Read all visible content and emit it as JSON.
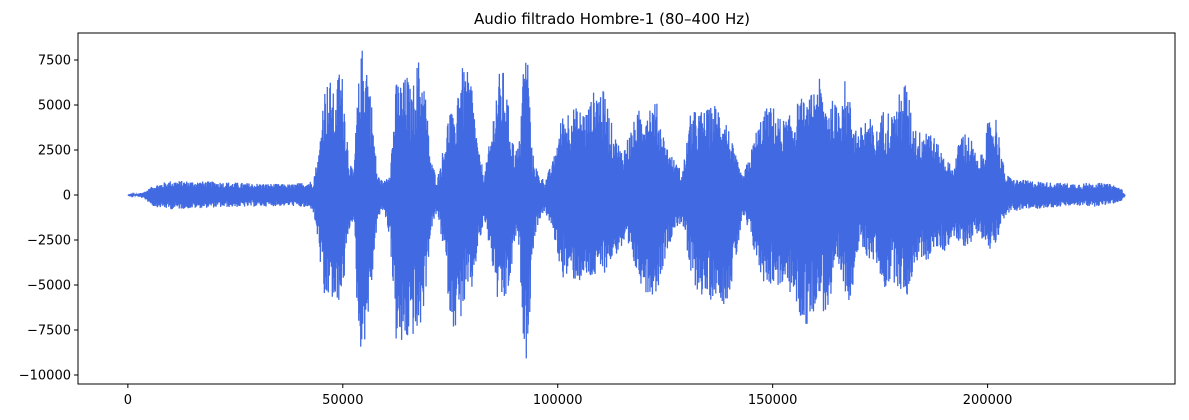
{
  "chart_data": {
    "type": "line",
    "title": "Audio filtrado Hombre-1 (80–400 Hz)",
    "xlabel": "",
    "ylabel": "",
    "xlim": [
      -11600,
      243600
    ],
    "ylim": [
      -10500,
      9000
    ],
    "xticks": [
      0,
      50000,
      100000,
      150000,
      200000
    ],
    "xtick_labels": [
      "0",
      "50000",
      "100000",
      "150000",
      "200000"
    ],
    "yticks": [
      -10000,
      -7500,
      -5000,
      -2500,
      0,
      2500,
      5000,
      7500
    ],
    "ytick_labels": [
      "−10000",
      "−7500",
      "−5000",
      "−2500",
      "0",
      "2500",
      "5000",
      "7500"
    ],
    "grid": false,
    "line_color": "#4169e1",
    "n_samples": 232000,
    "envelope": {
      "x": [
        0,
        2000,
        4000,
        6000,
        10000,
        20000,
        30000,
        38000,
        43000,
        44500,
        45500,
        47000,
        48500,
        49000,
        50000,
        51500,
        52500,
        53500,
        54500,
        55500,
        56500,
        58000,
        59500,
        61000,
        62500,
        64000,
        65000,
        66000,
        67500,
        69000,
        70500,
        72000,
        73500,
        75000,
        76000,
        77000,
        78500,
        80000,
        81500,
        83000,
        84500,
        86000,
        87500,
        89000,
        90000,
        91000,
        92000,
        93000,
        94000,
        95500,
        97000,
        99000,
        101000,
        103000,
        105000,
        107000,
        109000,
        111000,
        113000,
        115000,
        117000,
        119000,
        121000,
        123000,
        125000,
        127000,
        129000,
        131000,
        133000,
        135000,
        137000,
        139000,
        141000,
        143000,
        145000,
        146000,
        147500,
        149000,
        150500,
        152000,
        153500,
        155000,
        156500,
        158000,
        159500,
        160500,
        162000,
        163500,
        165000,
        166500,
        168000,
        170000,
        172000,
        174000,
        176000,
        178000,
        179500,
        181000,
        182500,
        184000,
        186000,
        188000,
        190000,
        192000,
        194000,
        196000,
        198000,
        200000,
        202000,
        204000,
        206000,
        210000,
        215000,
        220000,
        225000,
        229000,
        231000,
        232000
      ],
      "upper": [
        0,
        50,
        200,
        550,
        800,
        750,
        650,
        600,
        800,
        2500,
        6000,
        6500,
        5000,
        7500,
        6600,
        2000,
        1200,
        5800,
        8300,
        8000,
        5800,
        1200,
        700,
        1500,
        6500,
        6300,
        6800,
        5600,
        7700,
        6400,
        2000,
        900,
        2800,
        5200,
        3800,
        7200,
        7000,
        6500,
        2500,
        1200,
        3500,
        6700,
        7000,
        4000,
        2500,
        2800,
        7500,
        8200,
        2500,
        1200,
        800,
        2000,
        4500,
        5000,
        4800,
        4900,
        6200,
        5700,
        3500,
        2500,
        3700,
        4800,
        5300,
        5200,
        3000,
        2000,
        1300,
        4700,
        4700,
        4800,
        5200,
        4500,
        2500,
        1000,
        2500,
        3500,
        4500,
        5000,
        4900,
        4200,
        4300,
        4800,
        5500,
        5000,
        6000,
        6800,
        5500,
        5400,
        5000,
        6700,
        5300,
        3500,
        4700,
        3500,
        5000,
        4500,
        5700,
        6500,
        4300,
        3500,
        4200,
        3000,
        2200,
        1500,
        3700,
        3300,
        1700,
        4000,
        4500,
        1200,
        900,
        800,
        700,
        650,
        700,
        600,
        400,
        0
      ],
      "lower": [
        0,
        -50,
        -250,
        -650,
        -800,
        -700,
        -650,
        -600,
        -800,
        -3000,
        -6500,
        -5500,
        -6800,
        -6000,
        -5500,
        -2000,
        -1300,
        -7500,
        -9100,
        -7500,
        -5800,
        -1500,
        -800,
        -2500,
        -8600,
        -8700,
        -8300,
        -7800,
        -8200,
        -6200,
        -2000,
        -1000,
        -3200,
        -6800,
        -7500,
        -7300,
        -6000,
        -5500,
        -3000,
        -1500,
        -3500,
        -6000,
        -6300,
        -5000,
        -2500,
        -3000,
        -7800,
        -9700,
        -3500,
        -1500,
        -900,
        -2200,
        -4600,
        -4700,
        -4900,
        -4800,
        -4700,
        -4300,
        -3500,
        -3000,
        -3600,
        -4800,
        -5600,
        -5500,
        -3500,
        -2000,
        -1500,
        -4800,
        -5500,
        -6000,
        -5500,
        -6200,
        -4500,
        -1200,
        -2500,
        -3500,
        -4800,
        -5000,
        -5000,
        -5200,
        -5300,
        -5900,
        -7000,
        -7400,
        -6500,
        -5500,
        -6700,
        -6300,
        -4300,
        -5200,
        -6000,
        -3000,
        -3500,
        -3800,
        -5300,
        -4800,
        -5200,
        -6000,
        -4500,
        -3500,
        -3700,
        -3000,
        -3200,
        -2300,
        -3000,
        -2700,
        -2000,
        -3200,
        -2600,
        -1200,
        -900,
        -800,
        -700,
        -600,
        -650,
        -500,
        -400,
        0
      ]
    }
  }
}
